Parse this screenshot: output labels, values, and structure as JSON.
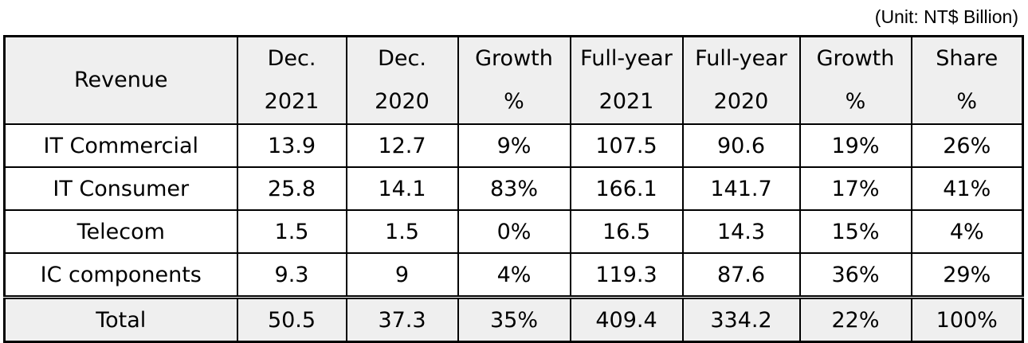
{
  "unit_note": "(Unit: NT$ Billion)",
  "table": {
    "headers": [
      {
        "line1": "Revenue",
        "line2": ""
      },
      {
        "line1": "Dec.",
        "line2": "2021"
      },
      {
        "line1": "Dec.",
        "line2": "2020"
      },
      {
        "line1": "Growth",
        "line2": "%"
      },
      {
        "line1": "Full-year",
        "line2": "2021"
      },
      {
        "line1": "Full-year",
        "line2": "2020"
      },
      {
        "line1": "Growth",
        "line2": "%"
      },
      {
        "line1": "Share",
        "line2": "%"
      }
    ],
    "rows": [
      [
        "IT Commercial",
        "13.9",
        "12.7",
        "9%",
        "107.5",
        "90.6",
        "19%",
        "26%"
      ],
      [
        "IT Consumer",
        "25.8",
        "14.1",
        "83%",
        "166.1",
        "141.7",
        "17%",
        "41%"
      ],
      [
        "Telecom",
        "1.5",
        "1.5",
        "0%",
        "16.5",
        "14.3",
        "15%",
        "4%"
      ],
      [
        "IC components",
        "9.3",
        "9",
        "4%",
        "119.3",
        "87.6",
        "36%",
        "29%"
      ]
    ],
    "total": [
      "Total",
      "50.5",
      "37.3",
      "35%",
      "409.4",
      "334.2",
      "22%",
      "100%"
    ]
  }
}
